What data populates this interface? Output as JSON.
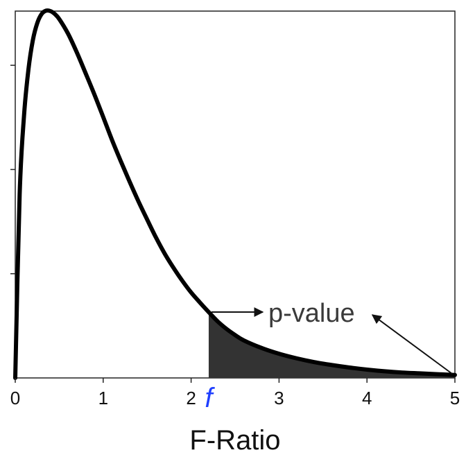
{
  "chart_data": {
    "type": "area",
    "title": "",
    "xlabel": "F-Ratio",
    "ylabel": "",
    "xlim": [
      0,
      5
    ],
    "ylim": [
      0,
      0.88
    ],
    "x_ticks": [
      "0",
      "1",
      "2",
      "3",
      "4",
      "5"
    ],
    "y_tick_values": [
      0.25,
      0.5,
      0.75
    ],
    "grid": false,
    "legend": "none",
    "series": [
      {
        "x": [
          0,
          0.05,
          0.1,
          0.15,
          0.2,
          0.25,
          0.3,
          0.35,
          0.4,
          0.45,
          0.5,
          0.6,
          0.7,
          0.8,
          0.9,
          1.0,
          1.1,
          1.2,
          1.3,
          1.4,
          1.5,
          1.6,
          1.7,
          1.8,
          1.9,
          2.0,
          2.1,
          2.2,
          2.3,
          2.4,
          2.5,
          2.6,
          2.8,
          3.0,
          3.2,
          3.4,
          3.6,
          3.8,
          4.0,
          4.2,
          4.4,
          4.6,
          4.8,
          5.0
        ],
        "y": [
          0,
          0.44,
          0.63,
          0.74,
          0.81,
          0.851,
          0.873,
          0.881,
          0.88,
          0.873,
          0.861,
          0.826,
          0.781,
          0.731,
          0.68,
          0.626,
          0.571,
          0.52,
          0.471,
          0.424,
          0.38,
          0.337,
          0.298,
          0.264,
          0.233,
          0.205,
          0.181,
          0.158,
          0.136,
          0.118,
          0.103,
          0.09,
          0.072,
          0.058,
          0.047,
          0.038,
          0.031,
          0.025,
          0.02,
          0.016,
          0.013,
          0.011,
          0.009,
          0.007
        ]
      }
    ],
    "shaded_region": {
      "from": 2.2,
      "to": 5.0
    },
    "marker_label": "f",
    "marker_x": 2.2,
    "annotation": "p-value",
    "colors": {
      "curve": "#000000",
      "shade": "#333333",
      "marker": "#1f3fff",
      "annotation_text": "#3a3a3a"
    }
  }
}
